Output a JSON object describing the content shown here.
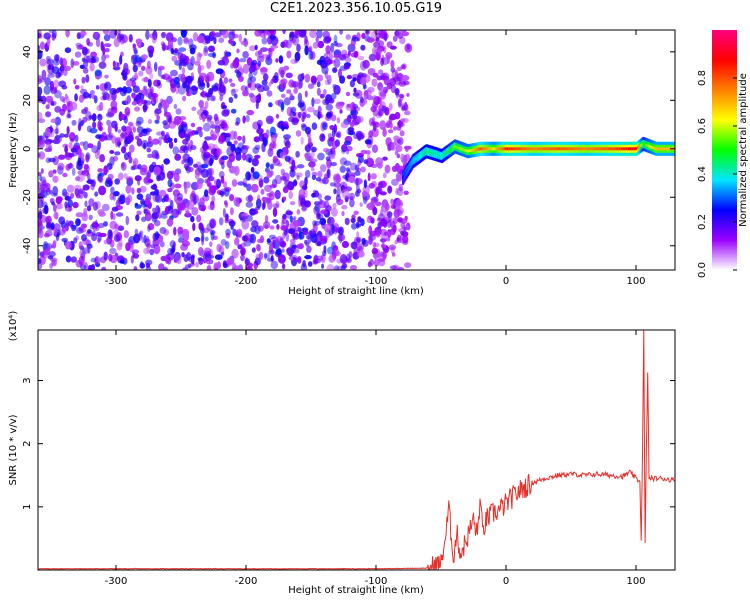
{
  "title": "C2E1.2023.356.10.05.G19",
  "colorbar": {
    "label": "Normalized spectral amplitude",
    "range": [
      0,
      1
    ],
    "tick_labels": [
      "0.0",
      "0.2",
      "0.4",
      "0.6",
      "0.8"
    ],
    "tick_values": [
      0.0,
      0.2,
      0.4,
      0.6,
      0.8
    ],
    "colormap": [
      "#ffffff",
      "#9b00ff",
      "#0000ff",
      "#00e5ff",
      "#00ff00",
      "#ffff00",
      "#ff8000",
      "#ff0000",
      "#ff0080"
    ]
  },
  "chart_data": [
    {
      "type": "heatmap",
      "title": "",
      "xlabel": "Height of straight line (km)",
      "ylabel": "Frequency (Hz)",
      "xlim": [
        -360,
        130
      ],
      "ylim": [
        -50,
        49
      ],
      "x_ticks": [
        -300,
        -200,
        -100,
        0,
        100
      ],
      "x_tick_labels": [
        "-300",
        "-200",
        "-100",
        "0",
        "100"
      ],
      "y_ticks": [
        -40,
        -20,
        0,
        20,
        40
      ],
      "y_tick_labels": [
        "-40",
        "-20",
        "0",
        "20",
        "40"
      ],
      "noise_region_km": [
        -360,
        -75
      ],
      "signal_line_region_km": [
        -75,
        130
      ],
      "signal_line_freq_hz": 0,
      "signal_profile": [
        {
          "x": -80,
          "freq": -12,
          "amp": 0.25
        },
        {
          "x": -72,
          "freq": -5,
          "amp": 0.35
        },
        {
          "x": -62,
          "freq": -1,
          "amp": 0.45
        },
        {
          "x": -50,
          "freq": -3,
          "amp": 0.4
        },
        {
          "x": -40,
          "freq": 1,
          "amp": 0.55
        },
        {
          "x": -30,
          "freq": -1,
          "amp": 0.6
        },
        {
          "x": -20,
          "freq": 0,
          "amp": 0.8
        },
        {
          "x": -10,
          "freq": 0,
          "amp": 0.65
        },
        {
          "x": 0,
          "freq": 0,
          "amp": 0.85
        },
        {
          "x": 20,
          "freq": 0,
          "amp": 0.75
        },
        {
          "x": 40,
          "freq": 0,
          "amp": 0.8
        },
        {
          "x": 60,
          "freq": 0,
          "amp": 0.75
        },
        {
          "x": 80,
          "freq": 0,
          "amp": 0.8
        },
        {
          "x": 100,
          "freq": 0,
          "amp": 0.9
        },
        {
          "x": 105,
          "freq": 2,
          "amp": 0.5
        },
        {
          "x": 115,
          "freq": 0,
          "amp": 0.7
        },
        {
          "x": 130,
          "freq": 0,
          "amp": 0.7
        }
      ]
    },
    {
      "type": "line",
      "title": "",
      "xlabel": "Height of straight line (km)",
      "ylabel": "SNR (10 * v/v)",
      "y_multiplier_label": "(x10⁴)",
      "xlim": [
        -360,
        130
      ],
      "ylim": [
        0,
        3.8
      ],
      "x_ticks": [
        -300,
        -200,
        -100,
        0,
        100
      ],
      "x_tick_labels": [
        "-300",
        "-200",
        "-100",
        "0",
        "100"
      ],
      "y_ticks": [
        1,
        2,
        3
      ],
      "y_tick_labels": [
        "1",
        "2",
        "3"
      ],
      "series": [
        {
          "color": "#e8302a",
          "x": [
            -360,
            -300,
            -200,
            -100,
            -60,
            -50,
            -46,
            -44,
            -42,
            -40,
            -38,
            -35,
            -30,
            -25,
            -22,
            -20,
            -18,
            -15,
            -10,
            -5,
            0,
            10,
            20,
            30,
            40,
            50,
            60,
            70,
            80,
            90,
            95,
            100,
            103,
            104,
            105,
            106,
            107,
            108,
            109,
            110,
            112,
            115,
            120,
            130
          ],
          "y": [
            0.02,
            0.02,
            0.02,
            0.02,
            0.03,
            0.1,
            0.6,
            1.0,
            0.5,
            0.2,
            0.6,
            0.25,
            0.5,
            0.8,
            0.55,
            1.1,
            0.6,
            0.8,
            0.9,
            0.95,
            1.05,
            1.25,
            1.38,
            1.45,
            1.5,
            1.52,
            1.5,
            1.52,
            1.5,
            1.48,
            1.55,
            1.45,
            1.4,
            0.5,
            1.8,
            3.8,
            0.4,
            2.0,
            3.1,
            1.45,
            1.45,
            1.45,
            1.45,
            1.42
          ]
        }
      ]
    }
  ]
}
